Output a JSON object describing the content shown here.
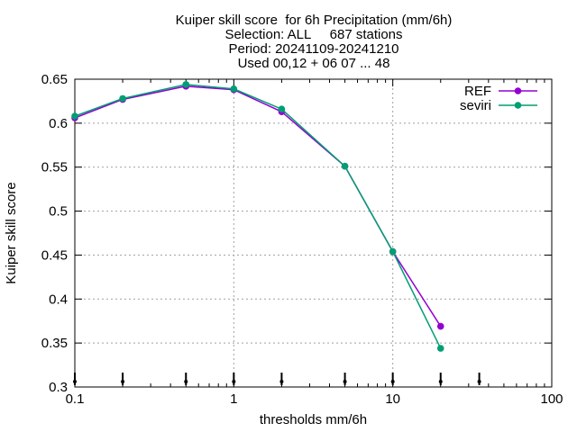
{
  "chart_data": {
    "type": "line",
    "title_lines": [
      "Kuiper skill score  for 6h Precipitation (mm/6h)",
      "Selection: ALL     687 stations",
      "Period: 20241109-20241210",
      "Used 00,12 + 06 07 ... 48"
    ],
    "xlabel": "thresholds mm/6h",
    "ylabel": "Kuiper skill score",
    "xscale": "log",
    "xlim": [
      0.1,
      100
    ],
    "ylim": [
      0.3,
      0.65
    ],
    "xticks": [
      0.1,
      1,
      10,
      100
    ],
    "xtick_labels": [
      "0.1",
      "1",
      "10",
      "100"
    ],
    "yticks": [
      0.3,
      0.35,
      0.4,
      0.45,
      0.5,
      0.55,
      0.6,
      0.65
    ],
    "ytick_labels": [
      "0.3",
      "0.35",
      "0.4",
      "0.45",
      "0.5",
      "0.55",
      "0.6",
      "0.65"
    ],
    "grid": true,
    "legend_position": "top-right",
    "marker_row_x": [
      0.1,
      0.2,
      0.5,
      1,
      2,
      5,
      10,
      20,
      35
    ],
    "series": [
      {
        "name": "REF",
        "color": "#9400d3",
        "x": [
          0.1,
          0.2,
          0.5,
          1,
          2,
          5,
          10,
          20
        ],
        "y": [
          0.606,
          0.627,
          0.642,
          0.638,
          0.613,
          0.551,
          0.454,
          0.369
        ]
      },
      {
        "name": "seviri",
        "color": "#009e73",
        "x": [
          0.1,
          0.2,
          0.5,
          1,
          2,
          5,
          10,
          20
        ],
        "y": [
          0.608,
          0.628,
          0.644,
          0.639,
          0.616,
          0.551,
          0.454,
          0.344
        ]
      }
    ]
  }
}
